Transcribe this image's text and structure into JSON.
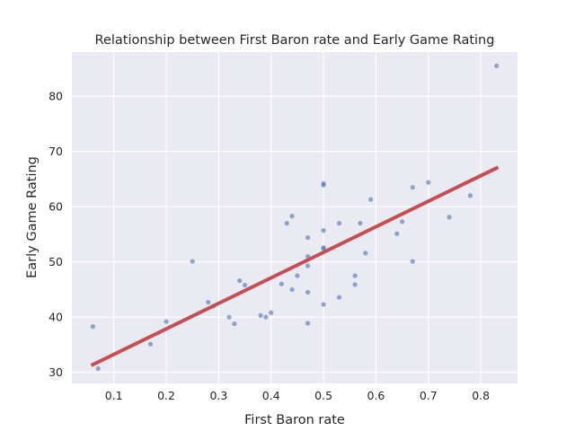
{
  "chart_data": {
    "type": "scatter",
    "title": "Relationship between First Baron rate and Early Game Rating",
    "xlabel": "First Baron rate",
    "ylabel": "Early Game Rating",
    "xlim": [
      0.02,
      0.87
    ],
    "ylim": [
      28,
      88
    ],
    "xticks": [
      0.1,
      0.2,
      0.3,
      0.4,
      0.5,
      0.6,
      0.7,
      0.8
    ],
    "xtick_labels": [
      "0.1",
      "0.2",
      "0.3",
      "0.4",
      "0.5",
      "0.6",
      "0.7",
      "0.8"
    ],
    "yticks": [
      30,
      40,
      50,
      60,
      70,
      80
    ],
    "ytick_labels": [
      "30",
      "40",
      "50",
      "60",
      "70",
      "80"
    ],
    "grid": true,
    "background": "#eaeaf2",
    "colors": {
      "points": "#4c72b0",
      "fit_line": "#c44e52"
    },
    "series": [
      {
        "type": "scatter",
        "x": [
          0.06,
          0.07,
          0.17,
          0.2,
          0.25,
          0.28,
          0.29,
          0.32,
          0.33,
          0.34,
          0.35,
          0.38,
          0.39,
          0.4,
          0.42,
          0.43,
          0.44,
          0.44,
          0.45,
          0.47,
          0.47,
          0.47,
          0.47,
          0.47,
          0.5,
          0.5,
          0.5,
          0.5,
          0.5,
          0.5,
          0.53,
          0.53,
          0.56,
          0.56,
          0.57,
          0.58,
          0.59,
          0.64,
          0.65,
          0.67,
          0.67,
          0.7,
          0.74,
          0.78,
          0.83
        ],
        "y": [
          38.3,
          30.7,
          35.1,
          39.2,
          50.1,
          42.7,
          42.0,
          40.0,
          38.8,
          46.6,
          45.8,
          40.3,
          40.0,
          40.8,
          46.0,
          57.0,
          58.3,
          45.0,
          47.5,
          54.4,
          51.0,
          49.3,
          44.5,
          38.9,
          64.2,
          63.9,
          55.7,
          52.6,
          52.4,
          42.3,
          57.0,
          43.6,
          47.5,
          45.9,
          57.0,
          51.6,
          61.3,
          55.1,
          57.3,
          63.5,
          50.1,
          64.4,
          58.1,
          62.0,
          85.5
        ]
      },
      {
        "type": "line",
        "x": [
          0.06,
          0.83
        ],
        "y": [
          31.4,
          67.0
        ]
      }
    ]
  }
}
